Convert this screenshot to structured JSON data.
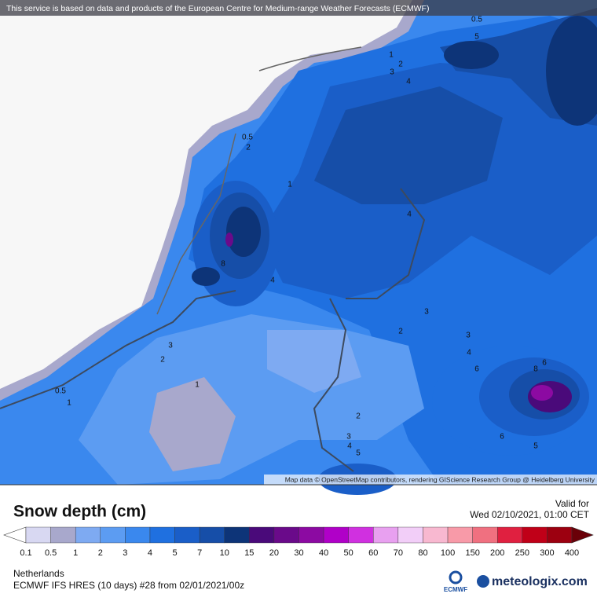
{
  "header": {
    "attribution": "This service is based on data and products of the European Centre for Medium-range Weather Forecasts (ECMWF)"
  },
  "map": {
    "credit": "Map data © OpenStreetMap contributors, rendering GIScience Research Group @ Heidelberg University",
    "contour_labels": [
      0.5,
      5,
      1,
      2,
      3,
      4,
      0.5,
      2,
      1,
      4,
      8,
      4,
      3,
      2,
      3,
      4,
      6,
      6,
      8,
      3,
      2,
      1,
      0.5,
      1,
      2,
      3,
      4,
      5,
      6,
      5
    ]
  },
  "legend": {
    "title": "Snow depth (cm)",
    "valid_label": "Valid for",
    "valid_time": "Wed 02/10/2021, 01:00 CET",
    "levels": [
      0.1,
      0.5,
      1,
      2,
      3,
      4,
      5,
      7,
      10,
      15,
      20,
      30,
      40,
      50,
      60,
      70,
      80,
      100,
      150,
      200,
      250,
      300,
      400
    ],
    "colors": [
      "#ffffff",
      "#d8d8f2",
      "#a8a8cc",
      "#7eaaf2",
      "#5c9cf2",
      "#3a88ee",
      "#1f70e0",
      "#1a5ec8",
      "#164ea8",
      "#0d3478",
      "#4a0a7a",
      "#6a0a8a",
      "#8c0aa2",
      "#b000c8",
      "#d030e0",
      "#e8a0f0",
      "#f2cef8",
      "#f8b8d0",
      "#f89aa8",
      "#f07080",
      "#e02040",
      "#c00018",
      "#9c0010",
      "#6a0008"
    ]
  },
  "footer": {
    "region": "Netherlands",
    "model": "ECMWF IFS HRES (10 days) #28 from  02/01/2021/00z",
    "logo_ecmwf": "ECMWF",
    "logo_meteologix": "meteologix.com"
  }
}
